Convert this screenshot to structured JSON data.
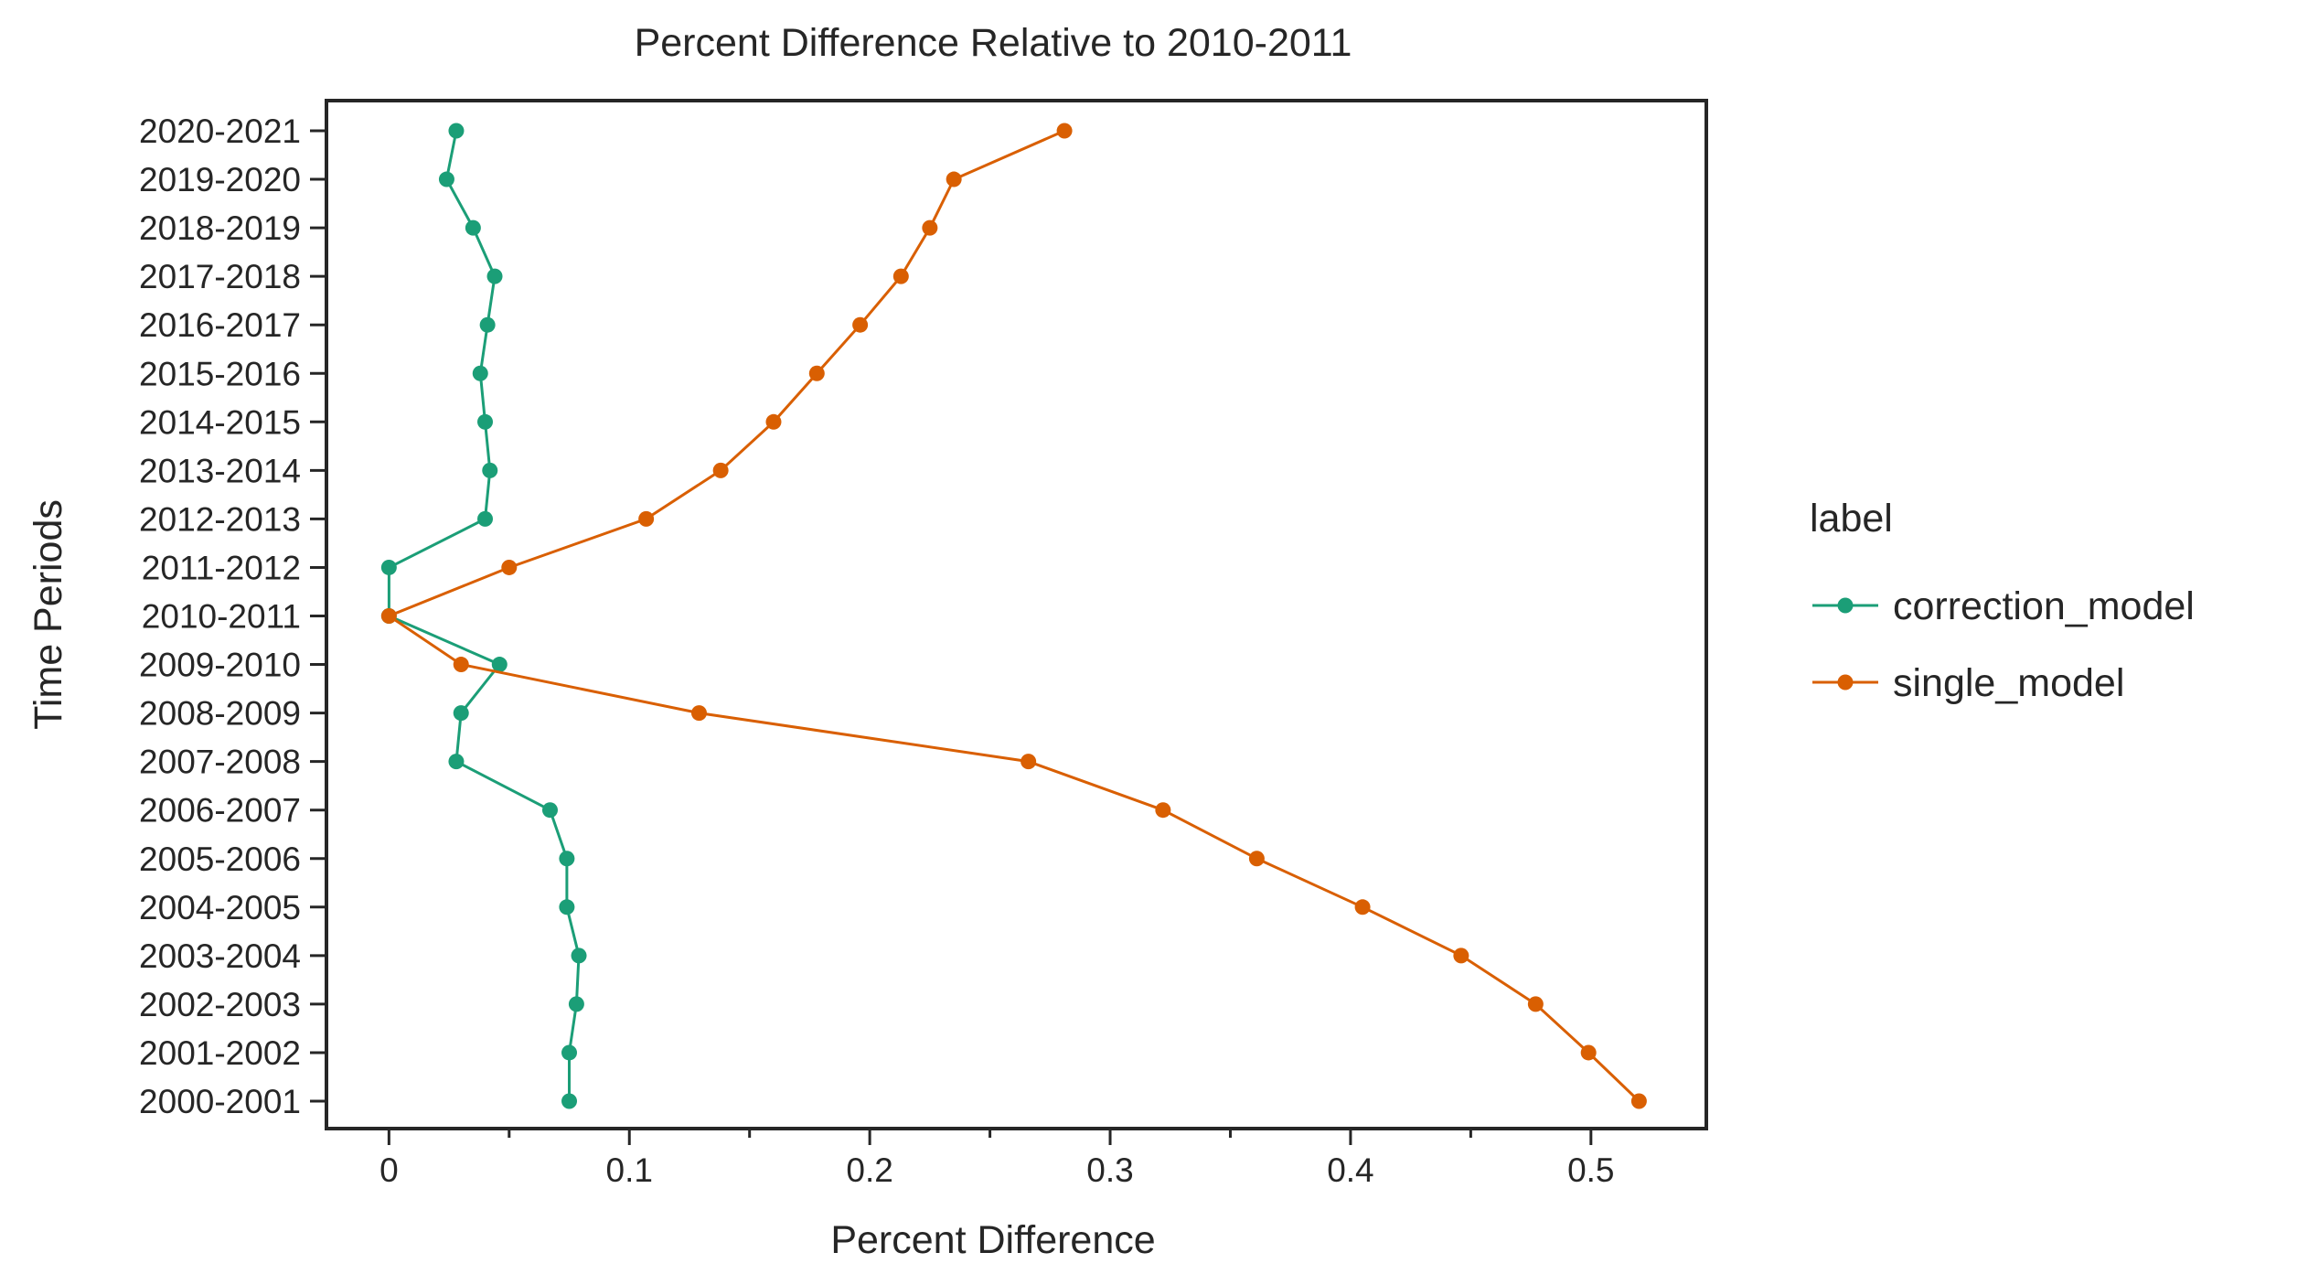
{
  "chart_data": {
    "type": "line",
    "title": "Percent Difference Relative to 2010-2011",
    "xlabel": "Percent Difference",
    "ylabel": "Time Periods",
    "xlim": [
      -0.026,
      0.548
    ],
    "xticks": [
      0,
      0.05,
      0.1,
      0.15,
      0.2,
      0.25,
      0.3,
      0.35,
      0.4,
      0.45,
      0.5
    ],
    "xtick_labels": [
      "0",
      "",
      "0.1",
      "",
      "0.2",
      "",
      "0.3",
      "",
      "0.4",
      "",
      "0.5"
    ],
    "categories": [
      "2020-2021",
      "2019-2020",
      "2018-2019",
      "2017-2018",
      "2016-2017",
      "2015-2016",
      "2014-2015",
      "2013-2014",
      "2012-2013",
      "2011-2012",
      "2010-2011",
      "2009-2010",
      "2008-2009",
      "2007-2008",
      "2006-2007",
      "2005-2006",
      "2004-2005",
      "2003-2004",
      "2002-2003",
      "2001-2002",
      "2000-2001"
    ],
    "legend_title": "label",
    "legend_position": "outside-right",
    "grid": false,
    "series": [
      {
        "name": "correction_model",
        "color": "#1b9e77",
        "values": [
          0.028,
          0.024,
          0.035,
          0.044,
          0.041,
          0.038,
          0.04,
          0.042,
          0.04,
          0.0,
          0.0,
          0.046,
          0.03,
          0.028,
          0.067,
          0.074,
          0.074,
          0.079,
          0.078,
          0.075,
          0.075
        ]
      },
      {
        "name": "single_model",
        "color": "#d95f02",
        "values": [
          0.281,
          0.235,
          0.225,
          0.213,
          0.196,
          0.178,
          0.16,
          0.138,
          0.107,
          0.05,
          0.0,
          0.03,
          0.129,
          0.266,
          0.322,
          0.361,
          0.405,
          0.446,
          0.477,
          0.499,
          0.52
        ]
      }
    ]
  }
}
